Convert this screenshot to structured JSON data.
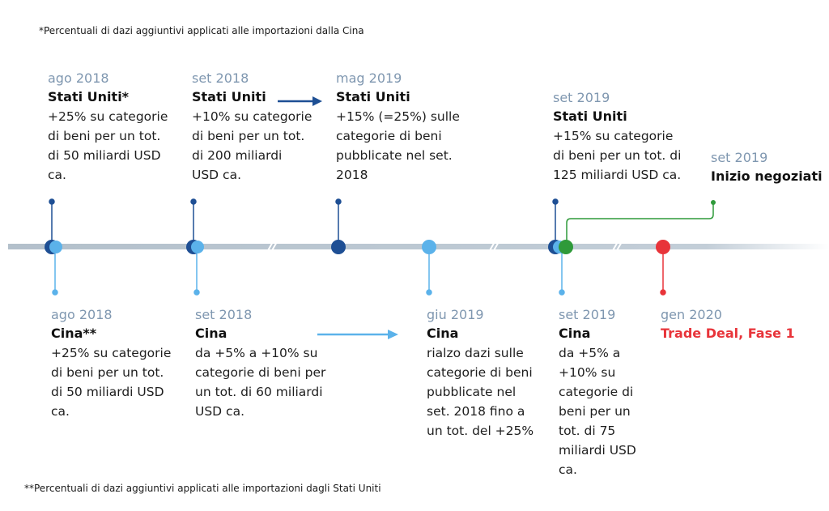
{
  "notes": {
    "top": "*Percentuali di dazi aggiuntivi applicati alle importazioni dalla Cina",
    "bottom": "**Percentuali di dazi aggiuntivi applicati alle importazioni dagli Stati Uniti"
  },
  "events_top": [
    {
      "date": "ago 2018",
      "actor": "Stati Uniti*",
      "desc": "+25% su categorie\ndi beni per un tot.\ndi 50 miliardi USD\nca."
    },
    {
      "date": "set 2018",
      "actor": "Stati Uniti",
      "desc": "+10% su categorie\ndi beni per un tot.\ndi 200 miliardi\nUSD ca."
    },
    {
      "date": "mag 2019",
      "actor": "Stati Uniti",
      "desc": "+15% (=25%) sulle\ncategorie di beni\npubblicate nel set.\n2018"
    },
    {
      "date": "set 2019",
      "actor": "Stati Uniti",
      "desc": "+15% su categorie\ndi beni per un tot. di\n125 miliardi USD ca."
    },
    {
      "date": "set 2019",
      "actor": "Inizio negoziati",
      "desc": ""
    }
  ],
  "events_bottom": [
    {
      "date": "ago 2018",
      "actor": "Cina**",
      "desc": "+25% su categorie\ndi beni per un tot.\ndi 50 miliardi USD\nca."
    },
    {
      "date": "set 2018",
      "actor": "Cina",
      "desc": "da +5% a +10% su\ncategorie di beni per\nun tot. di 60 miliardi\nUSD ca."
    },
    {
      "date": "giu 2019",
      "actor": "Cina",
      "desc": "rialzo dazi sulle\ncategorie di beni\npubblicate nel\nset. 2018 fino a\nun tot. del +25%"
    },
    {
      "date": "set 2019",
      "actor": "Cina",
      "desc": "da +5% a\n+10% su\ncategorie di\nbeni per un\ntot. di 75\nmiliardi USD\nca."
    },
    {
      "date": "gen 2020",
      "actor": "Trade Deal, Fase 1",
      "desc": ""
    }
  ],
  "colors": {
    "axis": "#bfcad4",
    "us": "#1e4f94",
    "china": "#5bb2ea",
    "negotiation": "#2f9a3a",
    "deal": "#e8343a",
    "date_text": "#7f97b0"
  }
}
